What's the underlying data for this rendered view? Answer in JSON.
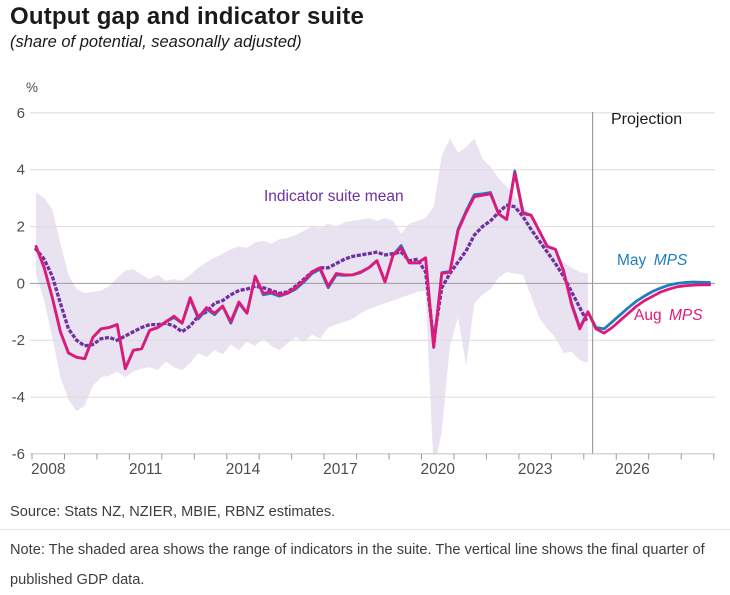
{
  "header": {
    "title": "Output gap and indicator suite",
    "subtitle": "(share of potential, seasonally adjusted)"
  },
  "chart": {
    "unit_label": "%",
    "projection_label": "Projection",
    "annotations": {
      "indicator_mean": "Indicator suite mean",
      "may_mps": {
        "prefix": "May",
        "suffix": "MPS"
      },
      "aug_mps": {
        "prefix": "Aug",
        "suffix": "MPS"
      }
    },
    "colors": {
      "pink": "#e01978",
      "blue": "#1d7dc2",
      "purple": "#7030a0",
      "band": "#e9e2f1",
      "grid_light": "#dcdcdc",
      "grid_strong": "#9b9b9b",
      "axis_line": "#c4c4c4",
      "tick": "#9b9b9b",
      "axis_text": "#4d4d4d",
      "projection_line": "#9e9e9e"
    }
  },
  "chart_data": {
    "type": "line",
    "title": "Output gap and indicator suite",
    "subtitle": "(share of potential, seasonally adjusted)",
    "xlabel": "",
    "ylabel": "%",
    "ylim": [
      -6,
      6
    ],
    "y_ticks": [
      6,
      4,
      2,
      0,
      -2,
      -4,
      -6
    ],
    "x_tick_years": [
      2008,
      2011,
      2014,
      2017,
      2020,
      2023,
      2026
    ],
    "x_axis_start_year": 2008,
    "x_axis_end_year": 2029,
    "grid": true,
    "legend_position": "inline-annotations",
    "projection_line_x": 2025.27,
    "quarters_start": 2008.125,
    "quarter_step": 0.25,
    "band": {
      "name": "Indicator suite range",
      "upper": [
        3.2,
        3.0,
        2.6,
        1.4,
        0.3,
        -0.2,
        -0.35,
        -0.3,
        -0.25,
        -0.1,
        0.2,
        0.45,
        0.5,
        0.3,
        0.15,
        0.3,
        0.1,
        0.15,
        0.1,
        0.3,
        0.55,
        0.75,
        0.9,
        1.05,
        1.2,
        1.3,
        1.25,
        1.45,
        1.5,
        1.4,
        1.55,
        1.6,
        1.7,
        1.85,
        2.0,
        1.95,
        2.1,
        2.0,
        2.15,
        2.2,
        2.25,
        2.3,
        2.2,
        2.3,
        2.2,
        1.75,
        2.1,
        2.2,
        2.3,
        2.7,
        4.5,
        5.1,
        4.6,
        4.8,
        5.1,
        4.4,
        4.1,
        3.7,
        3.4,
        3.05,
        2.75,
        2.35,
        1.9,
        1.4,
        1.05,
        0.75,
        0.55,
        0.4,
        0.35
      ],
      "lower": [
        0.3,
        -0.6,
        -1.9,
        -3.3,
        -4.1,
        -4.5,
        -4.3,
        -3.6,
        -3.3,
        -3.25,
        -3.1,
        -3.3,
        -3.1,
        -3.0,
        -2.95,
        -3.05,
        -2.75,
        -2.95,
        -3.05,
        -2.8,
        -2.45,
        -2.6,
        -2.35,
        -2.5,
        -2.15,
        -2.35,
        -2.05,
        -2.2,
        -1.95,
        -2.2,
        -2.35,
        -2.1,
        -1.9,
        -2.05,
        -1.8,
        -1.95,
        -1.55,
        -1.45,
        -1.35,
        -1.25,
        -1.05,
        -0.9,
        -0.8,
        -0.7,
        -0.6,
        -0.5,
        -0.4,
        -0.3,
        -0.25,
        -6.6,
        -5.2,
        -2.2,
        -1.2,
        -2.9,
        -0.7,
        -0.4,
        -0.2,
        0.2,
        0.4,
        0.35,
        0.3,
        -0.45,
        -1.2,
        -1.6,
        -1.9,
        -2.45,
        -2.4,
        -2.7,
        -2.8
      ]
    },
    "series": [
      {
        "name": "Indicator suite mean",
        "style": "dotted",
        "color_key": "purple",
        "values": [
          1.2,
          0.85,
          0.25,
          -0.7,
          -1.6,
          -2.0,
          -2.2,
          -2.15,
          -1.95,
          -1.9,
          -2.0,
          -1.85,
          -1.7,
          -1.55,
          -1.45,
          -1.45,
          -1.4,
          -1.5,
          -1.7,
          -1.5,
          -1.15,
          -1.0,
          -0.7,
          -0.6,
          -0.4,
          -0.25,
          -0.2,
          -0.1,
          -0.15,
          -0.25,
          -0.35,
          -0.3,
          -0.1,
          0.15,
          0.4,
          0.55,
          0.55,
          0.7,
          0.85,
          0.95,
          1.0,
          1.05,
          1.1,
          1.0,
          1.05,
          1.1,
          0.8,
          0.85,
          0.4,
          -2.0,
          -0.15,
          0.35,
          0.75,
          1.15,
          1.7,
          2.0,
          2.2,
          2.5,
          2.75,
          2.7,
          2.35,
          1.9,
          1.5,
          1.1,
          0.7,
          0.25,
          -0.3,
          -0.85,
          -1.4
        ]
      },
      {
        "name": "May MPS",
        "style": "solid",
        "color_key": "blue",
        "values": [
          1.3,
          0.55,
          -0.5,
          -1.7,
          -2.45,
          -2.6,
          -2.65,
          -1.9,
          -1.6,
          -1.55,
          -1.45,
          -3.0,
          -2.35,
          -2.3,
          -1.65,
          -1.55,
          -1.35,
          -1.2,
          -1.4,
          -0.55,
          -1.25,
          -0.9,
          -1.1,
          -0.8,
          -1.4,
          -0.7,
          -1.05,
          0.25,
          -0.4,
          -0.35,
          -0.45,
          -0.35,
          -0.2,
          0.05,
          0.35,
          0.5,
          -0.15,
          0.3,
          0.28,
          0.3,
          0.38,
          0.55,
          0.8,
          0.05,
          1.0,
          1.33,
          0.72,
          0.72,
          0.9,
          -2.25,
          0.38,
          0.42,
          1.9,
          2.55,
          3.12,
          3.15,
          3.2,
          2.45,
          2.25,
          3.95,
          2.5,
          2.4,
          1.85,
          1.3,
          1.2,
          0.45,
          -0.7,
          -1.55,
          -1.0,
          -1.55,
          -1.6,
          -1.35,
          -1.1,
          -0.85,
          -0.62,
          -0.44,
          -0.28,
          -0.16,
          -0.06,
          0.0,
          0.03,
          0.05,
          0.04,
          0.03
        ]
      },
      {
        "name": "Aug MPS",
        "style": "solid",
        "color_key": "pink",
        "values": [
          1.3,
          0.55,
          -0.5,
          -1.7,
          -2.45,
          -2.6,
          -2.65,
          -1.9,
          -1.6,
          -1.55,
          -1.45,
          -3.0,
          -2.35,
          -2.3,
          -1.65,
          -1.55,
          -1.35,
          -1.15,
          -1.4,
          -0.5,
          -1.2,
          -0.85,
          -1.05,
          -0.8,
          -1.35,
          -0.65,
          -1.05,
          0.25,
          -0.35,
          -0.3,
          -0.4,
          -0.35,
          -0.15,
          0.1,
          0.4,
          0.55,
          -0.1,
          0.35,
          0.3,
          0.3,
          0.4,
          0.55,
          0.8,
          0.05,
          1.0,
          1.25,
          0.72,
          0.72,
          0.9,
          -2.25,
          0.35,
          0.4,
          1.85,
          2.5,
          3.05,
          3.1,
          3.15,
          2.45,
          2.25,
          3.9,
          2.45,
          2.4,
          1.85,
          1.3,
          1.2,
          0.45,
          -0.75,
          -1.6,
          -1.0,
          -1.6,
          -1.75,
          -1.55,
          -1.3,
          -1.05,
          -0.8,
          -0.6,
          -0.45,
          -0.3,
          -0.2,
          -0.12,
          -0.08,
          -0.06,
          -0.05,
          -0.05
        ]
      }
    ]
  },
  "footer": {
    "source": "Source: Stats NZ, NZIER, MBIE, RBNZ estimates.",
    "note": "Note: The shaded area shows the range of indicators in the suite. The vertical line shows the final quarter of published GDP data."
  }
}
